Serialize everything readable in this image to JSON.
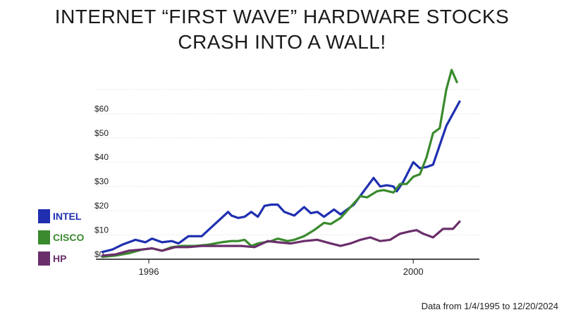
{
  "chart_data": {
    "type": "line",
    "title_lines": [
      "INTERNET “FIRST WAVE” HARDWARE STOCKS",
      "CRASH INTO A WALL!"
    ],
    "xlabel": "",
    "ylabel": "",
    "xlim": [
      1995.2,
      2001.0
    ],
    "ylim": [
      0,
      72
    ],
    "x_ticks": [
      1996,
      2000
    ],
    "x_tick_labels": [
      "1996",
      "2000"
    ],
    "y_ticks": [
      0,
      10,
      20,
      30,
      40,
      50,
      60
    ],
    "y_tick_labels": [
      "$0",
      "$10",
      "$20",
      "$30",
      "$40",
      "$50",
      "$60"
    ],
    "grid": "horizontal",
    "legend_position": "left",
    "footnote": "Data from 1/4/1995 to 12/20/2024",
    "series": [
      {
        "name": "INTEL",
        "color": "#1f2fb0",
        "points": [
          [
            1995.3,
            3.0
          ],
          [
            1995.45,
            4.0
          ],
          [
            1995.6,
            6.0
          ],
          [
            1995.8,
            8.0
          ],
          [
            1995.95,
            7.0
          ],
          [
            1996.05,
            8.5
          ],
          [
            1996.2,
            7.0
          ],
          [
            1996.35,
            7.5
          ],
          [
            1996.45,
            6.5
          ],
          [
            1996.6,
            9.5
          ],
          [
            1996.8,
            9.5
          ],
          [
            1997.0,
            14.5
          ],
          [
            1997.1,
            17.0
          ],
          [
            1997.2,
            19.5
          ],
          [
            1997.25,
            18.0
          ],
          [
            1997.35,
            17.0
          ],
          [
            1997.45,
            17.5
          ],
          [
            1997.55,
            19.5
          ],
          [
            1997.65,
            17.5
          ],
          [
            1997.75,
            22.0
          ],
          [
            1997.85,
            22.5
          ],
          [
            1997.95,
            22.5
          ],
          [
            1998.05,
            19.5
          ],
          [
            1998.2,
            18.0
          ],
          [
            1998.35,
            21.5
          ],
          [
            1998.45,
            19.0
          ],
          [
            1998.55,
            19.5
          ],
          [
            1998.65,
            17.5
          ],
          [
            1998.8,
            20.5
          ],
          [
            1998.9,
            18.5
          ],
          [
            1999.1,
            22.5
          ],
          [
            1999.25,
            28.0
          ],
          [
            1999.4,
            33.5
          ],
          [
            1999.5,
            30.0
          ],
          [
            1999.6,
            30.5
          ],
          [
            1999.7,
            30.0
          ],
          [
            1999.75,
            28.0
          ],
          [
            1999.85,
            32.0
          ],
          [
            2000.0,
            40.0
          ],
          [
            2000.1,
            37.5
          ],
          [
            2000.2,
            38.0
          ],
          [
            2000.3,
            39.0
          ],
          [
            2000.5,
            55.0
          ],
          [
            2000.7,
            65.0
          ]
        ]
      },
      {
        "name": "CISCO",
        "color": "#3a8a2e",
        "points": [
          [
            1995.3,
            1.0
          ],
          [
            1995.5,
            1.5
          ],
          [
            1995.7,
            2.5
          ],
          [
            1995.9,
            4.0
          ],
          [
            1996.05,
            4.5
          ],
          [
            1996.2,
            3.5
          ],
          [
            1996.35,
            5.0
          ],
          [
            1996.5,
            5.5
          ],
          [
            1996.7,
            5.5
          ],
          [
            1996.9,
            6.0
          ],
          [
            1997.1,
            7.0
          ],
          [
            1997.25,
            7.5
          ],
          [
            1997.35,
            7.5
          ],
          [
            1997.45,
            8.0
          ],
          [
            1997.55,
            5.5
          ],
          [
            1997.65,
            6.5
          ],
          [
            1997.75,
            7.0
          ],
          [
            1997.85,
            7.5
          ],
          [
            1997.95,
            8.5
          ],
          [
            1998.1,
            7.5
          ],
          [
            1998.2,
            8.0
          ],
          [
            1998.35,
            9.5
          ],
          [
            1998.5,
            12.0
          ],
          [
            1998.65,
            15.0
          ],
          [
            1998.75,
            14.5
          ],
          [
            1998.9,
            17.0
          ],
          [
            1999.05,
            21.5
          ],
          [
            1999.2,
            26.0
          ],
          [
            1999.3,
            25.5
          ],
          [
            1999.45,
            28.0
          ],
          [
            1999.55,
            28.5
          ],
          [
            1999.7,
            27.5
          ],
          [
            1999.8,
            31.0
          ],
          [
            1999.9,
            31.0
          ],
          [
            2000.0,
            34.0
          ],
          [
            2000.1,
            35.0
          ],
          [
            2000.2,
            42.0
          ],
          [
            2000.3,
            52.0
          ],
          [
            2000.4,
            54.0
          ],
          [
            2000.5,
            70.0
          ],
          [
            2000.58,
            78.0
          ],
          [
            2000.66,
            73.0
          ]
        ]
      },
      {
        "name": "HP",
        "color": "#6a2f6a",
        "points": [
          [
            1995.3,
            1.5
          ],
          [
            1995.5,
            2.0
          ],
          [
            1995.7,
            3.5
          ],
          [
            1995.9,
            4.0
          ],
          [
            1996.05,
            4.5
          ],
          [
            1996.2,
            3.5
          ],
          [
            1996.4,
            5.0
          ],
          [
            1996.6,
            5.0
          ],
          [
            1996.8,
            5.5
          ],
          [
            1997.0,
            5.5
          ],
          [
            1997.2,
            5.5
          ],
          [
            1997.4,
            5.5
          ],
          [
            1997.6,
            5.0
          ],
          [
            1997.8,
            7.5
          ],
          [
            1997.95,
            7.0
          ],
          [
            1998.15,
            6.5
          ],
          [
            1998.35,
            7.5
          ],
          [
            1998.55,
            8.0
          ],
          [
            1998.75,
            6.5
          ],
          [
            1998.9,
            5.5
          ],
          [
            1999.05,
            6.5
          ],
          [
            1999.2,
            8.0
          ],
          [
            1999.35,
            9.0
          ],
          [
            1999.5,
            7.5
          ],
          [
            1999.65,
            8.0
          ],
          [
            1999.8,
            10.5
          ],
          [
            1999.95,
            11.5
          ],
          [
            2000.05,
            12.0
          ],
          [
            2000.15,
            10.5
          ],
          [
            2000.3,
            9.0
          ],
          [
            2000.45,
            12.5
          ],
          [
            2000.6,
            12.5
          ],
          [
            2000.7,
            15.5
          ]
        ]
      }
    ]
  }
}
